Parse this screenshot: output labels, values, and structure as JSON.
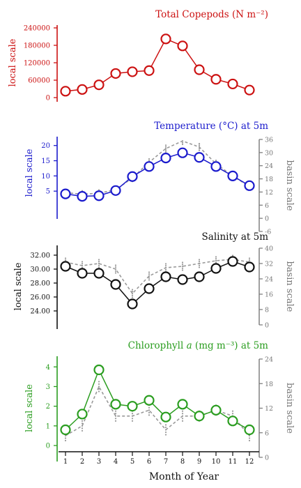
{
  "x_axis": {
    "label": "Month of Year",
    "ticks": [
      "1",
      "2",
      "3",
      "4",
      "5",
      "6",
      "7",
      "8",
      "9",
      "10",
      "11",
      "12"
    ]
  },
  "chart_data": [
    {
      "id": "copepods",
      "type": "line",
      "title": "Total Copepods (N m⁻²)",
      "color": "#cc1111",
      "ylabel_left": "local scale",
      "ylim_left": [
        0,
        240000
      ],
      "yticks_left": [
        0,
        60000,
        120000,
        180000,
        240000
      ],
      "series": [
        {
          "role": "local",
          "values": [
            22000,
            28000,
            44000,
            83000,
            89000,
            93000,
            202000,
            178000,
            96000,
            63000,
            47000,
            26000
          ]
        }
      ]
    },
    {
      "id": "temperature",
      "type": "line",
      "title": "Temperature (°C) at 5m",
      "color": "#1a1acc",
      "ylabel_left": "local scale",
      "ylim_left": [
        0,
        22
      ],
      "yticks_left": [
        5,
        10,
        15,
        20
      ],
      "ylabel_right": "basin scale",
      "ylim_right": [
        -6,
        36
      ],
      "yticks_right": [
        -6,
        0,
        6,
        12,
        18,
        24,
        30,
        36
      ],
      "series": [
        {
          "role": "local",
          "values": [
            4.1,
            3.3,
            3.5,
            5.2,
            9.8,
            13.1,
            15.9,
            17.6,
            16.1,
            13.1,
            10.0,
            6.8
          ]
        },
        {
          "role": "basin_mean",
          "values": [
            4.5,
            4.0,
            4.3,
            5.5,
            9.3,
            14.5,
            19.0,
            21.5,
            19.5,
            14.0,
            10.0,
            6.5
          ]
        }
      ]
    },
    {
      "id": "salinity",
      "type": "line",
      "title": "Salinity at 5m",
      "color": "#111111",
      "ylabel_left": "local scale",
      "ylim_left": [
        22,
        33
      ],
      "yticks_left": [
        24.0,
        26.0,
        28.0,
        30.0,
        32.0
      ],
      "ylabel_right": "basin scale",
      "ylim_right": [
        0,
        40
      ],
      "yticks_right": [
        0,
        8,
        16,
        24,
        32,
        40
      ],
      "series": [
        {
          "role": "local",
          "values": [
            30.4,
            29.4,
            29.4,
            27.8,
            25.0,
            27.2,
            28.9,
            28.5,
            28.9,
            30.1,
            31.1,
            30.3
          ]
        },
        {
          "role": "basin_mean",
          "values": [
            31.0,
            30.5,
            30.8,
            30.0,
            26.5,
            29.0,
            30.2,
            30.4,
            30.8,
            31.2,
            31.4,
            31.0
          ]
        }
      ]
    },
    {
      "id": "chlorophyll",
      "type": "line",
      "title": "Chlorophyll a (mg m⁻³) at 5m",
      "color": "#2a9d1f",
      "ylabel_left": "local scale",
      "ylim_left": [
        -0.6,
        4.4
      ],
      "yticks_left": [
        0,
        1,
        2,
        3,
        4
      ],
      "ylabel_right": "basin scale",
      "ylim_right": [
        0,
        24
      ],
      "yticks_right": [
        0,
        6,
        12,
        18,
        24
      ],
      "series": [
        {
          "role": "local",
          "values": [
            0.8,
            1.6,
            3.85,
            2.1,
            2.0,
            2.3,
            1.45,
            2.1,
            1.5,
            1.8,
            1.25,
            0.8
          ]
        },
        {
          "role": "basin_mean",
          "values": [
            0.5,
            1.0,
            3.0,
            1.5,
            1.5,
            1.8,
            0.8,
            1.5,
            1.5,
            1.8,
            1.5,
            0.5
          ]
        }
      ]
    }
  ]
}
